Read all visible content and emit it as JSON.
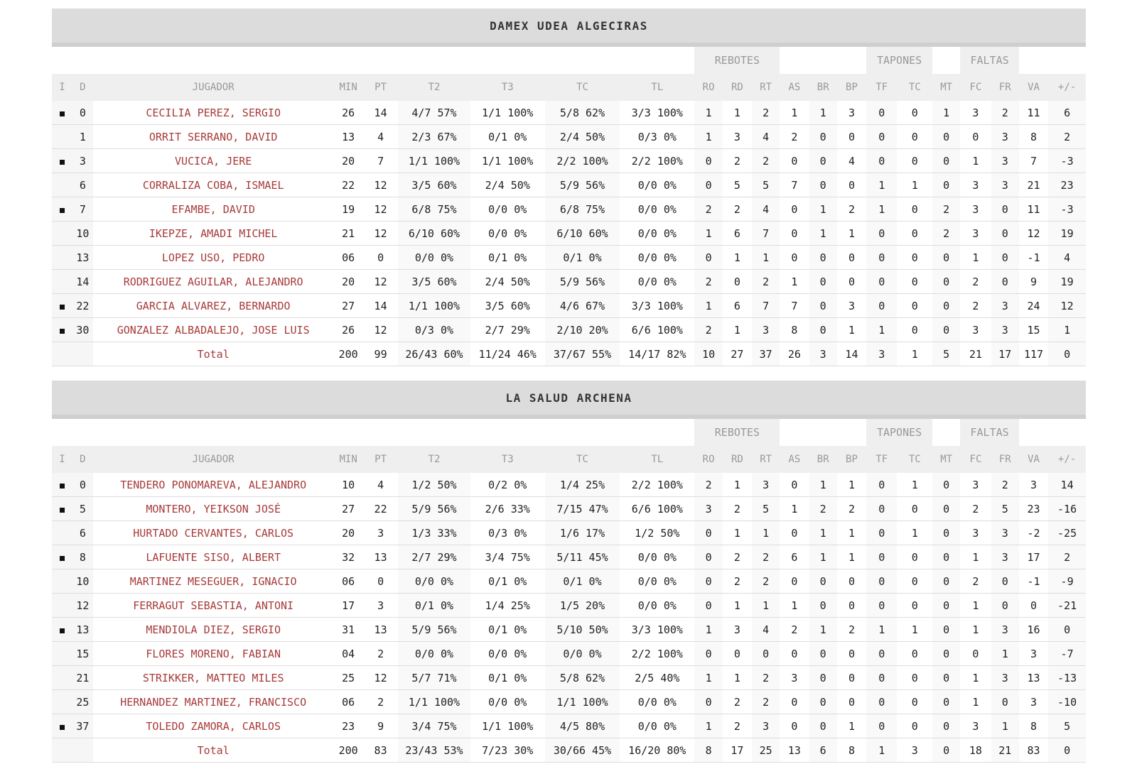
{
  "headers": {
    "groups": {
      "rebotes": "REBOTES",
      "tapones": "TAPONES",
      "faltas": "FALTAS"
    },
    "columns": [
      "I",
      "D",
      "JUGADOR",
      "MIN",
      "PT",
      "T2",
      "T3",
      "TC",
      "TL",
      "RO",
      "RD",
      "RT",
      "AS",
      "BR",
      "BP",
      "TF",
      "TC",
      "MT",
      "FC",
      "FR",
      "VA",
      "+/-"
    ]
  },
  "teams": [
    {
      "name": "DAMEX UDEA ALGECIRAS",
      "players": [
        {
          "starter": true,
          "d": "0",
          "name": "CECILIA PEREZ, SERGIO",
          "min": "26",
          "pt": "14",
          "t2": "4/7 57%",
          "t3": "1/1 100%",
          "tc": "5/8 62%",
          "tl": "3/3 100%",
          "ro": "1",
          "rd": "1",
          "rt": "2",
          "as": "1",
          "br": "1",
          "bp": "3",
          "tf": "0",
          "tc2": "0",
          "mt": "1",
          "fc": "3",
          "fr": "2",
          "va": "11",
          "pm": "6"
        },
        {
          "starter": false,
          "d": "1",
          "name": "ORRIT SERRANO, DAVID",
          "min": "13",
          "pt": "4",
          "t2": "2/3 67%",
          "t3": "0/1 0%",
          "tc": "2/4 50%",
          "tl": "0/3 0%",
          "ro": "1",
          "rd": "3",
          "rt": "4",
          "as": "2",
          "br": "0",
          "bp": "0",
          "tf": "0",
          "tc2": "0",
          "mt": "0",
          "fc": "0",
          "fr": "3",
          "va": "8",
          "pm": "2"
        },
        {
          "starter": true,
          "d": "3",
          "name": "VUCICA, JERE",
          "min": "20",
          "pt": "7",
          "t2": "1/1 100%",
          "t3": "1/1 100%",
          "tc": "2/2 100%",
          "tl": "2/2 100%",
          "ro": "0",
          "rd": "2",
          "rt": "2",
          "as": "0",
          "br": "0",
          "bp": "4",
          "tf": "0",
          "tc2": "0",
          "mt": "0",
          "fc": "1",
          "fr": "3",
          "va": "7",
          "pm": "-3"
        },
        {
          "starter": false,
          "d": "6",
          "name": "CORRALIZA COBA, ISMAEL",
          "min": "22",
          "pt": "12",
          "t2": "3/5 60%",
          "t3": "2/4 50%",
          "tc": "5/9 56%",
          "tl": "0/0 0%",
          "ro": "0",
          "rd": "5",
          "rt": "5",
          "as": "7",
          "br": "0",
          "bp": "0",
          "tf": "1",
          "tc2": "1",
          "mt": "0",
          "fc": "3",
          "fr": "3",
          "va": "21",
          "pm": "23"
        },
        {
          "starter": true,
          "d": "7",
          "name": "EFAMBE, DAVID",
          "min": "19",
          "pt": "12",
          "t2": "6/8 75%",
          "t3": "0/0 0%",
          "tc": "6/8 75%",
          "tl": "0/0 0%",
          "ro": "2",
          "rd": "2",
          "rt": "4",
          "as": "0",
          "br": "1",
          "bp": "2",
          "tf": "1",
          "tc2": "0",
          "mt": "2",
          "fc": "3",
          "fr": "0",
          "va": "11",
          "pm": "-3"
        },
        {
          "starter": false,
          "d": "10",
          "name": "IKEPZE, AMADI MICHEL",
          "min": "21",
          "pt": "12",
          "t2": "6/10 60%",
          "t3": "0/0 0%",
          "tc": "6/10 60%",
          "tl": "0/0 0%",
          "ro": "1",
          "rd": "6",
          "rt": "7",
          "as": "0",
          "br": "1",
          "bp": "1",
          "tf": "0",
          "tc2": "0",
          "mt": "2",
          "fc": "3",
          "fr": "0",
          "va": "12",
          "pm": "19"
        },
        {
          "starter": false,
          "d": "13",
          "name": "LOPEZ USO, PEDRO",
          "min": "06",
          "pt": "0",
          "t2": "0/0 0%",
          "t3": "0/1 0%",
          "tc": "0/1 0%",
          "tl": "0/0 0%",
          "ro": "0",
          "rd": "1",
          "rt": "1",
          "as": "0",
          "br": "0",
          "bp": "0",
          "tf": "0",
          "tc2": "0",
          "mt": "0",
          "fc": "1",
          "fr": "0",
          "va": "-1",
          "pm": "4"
        },
        {
          "starter": false,
          "d": "14",
          "name": "RODRIGUEZ AGUILAR, ALEJANDRO",
          "min": "20",
          "pt": "12",
          "t2": "3/5 60%",
          "t3": "2/4 50%",
          "tc": "5/9 56%",
          "tl": "0/0 0%",
          "ro": "2",
          "rd": "0",
          "rt": "2",
          "as": "1",
          "br": "0",
          "bp": "0",
          "tf": "0",
          "tc2": "0",
          "mt": "0",
          "fc": "2",
          "fr": "0",
          "va": "9",
          "pm": "19"
        },
        {
          "starter": true,
          "d": "22",
          "name": "GARCIA ALVAREZ, BERNARDO",
          "min": "27",
          "pt": "14",
          "t2": "1/1 100%",
          "t3": "3/5 60%",
          "tc": "4/6 67%",
          "tl": "3/3 100%",
          "ro": "1",
          "rd": "6",
          "rt": "7",
          "as": "7",
          "br": "0",
          "bp": "3",
          "tf": "0",
          "tc2": "0",
          "mt": "0",
          "fc": "2",
          "fr": "3",
          "va": "24",
          "pm": "12"
        },
        {
          "starter": true,
          "d": "30",
          "name": "GONZALEZ ALBADALEJO, JOSE LUIS",
          "min": "26",
          "pt": "12",
          "t2": "0/3 0%",
          "t3": "2/7 29%",
          "tc": "2/10 20%",
          "tl": "6/6 100%",
          "ro": "2",
          "rd": "1",
          "rt": "3",
          "as": "8",
          "br": "0",
          "bp": "1",
          "tf": "1",
          "tc2": "0",
          "mt": "0",
          "fc": "3",
          "fr": "3",
          "va": "15",
          "pm": "1"
        }
      ],
      "total": {
        "label": "Total",
        "min": "200",
        "pt": "99",
        "t2": "26/43 60%",
        "t3": "11/24 46%",
        "tc": "37/67 55%",
        "tl": "14/17 82%",
        "ro": "10",
        "rd": "27",
        "rt": "37",
        "as": "26",
        "br": "3",
        "bp": "14",
        "tf": "3",
        "tc2": "1",
        "mt": "5",
        "fc": "21",
        "fr": "17",
        "va": "117",
        "pm": "0"
      }
    },
    {
      "name": "LA SALUD ARCHENA",
      "players": [
        {
          "starter": true,
          "d": "0",
          "name": "TENDERO PONOMAREVA, ALEJANDRO",
          "min": "10",
          "pt": "4",
          "t2": "1/2 50%",
          "t3": "0/2 0%",
          "tc": "1/4 25%",
          "tl": "2/2 100%",
          "ro": "2",
          "rd": "1",
          "rt": "3",
          "as": "0",
          "br": "1",
          "bp": "1",
          "tf": "0",
          "tc2": "1",
          "mt": "0",
          "fc": "3",
          "fr": "2",
          "va": "3",
          "pm": "14"
        },
        {
          "starter": true,
          "d": "5",
          "name": "MONTERO, YEIKSON JOSÉ",
          "min": "27",
          "pt": "22",
          "t2": "5/9 56%",
          "t3": "2/6 33%",
          "tc": "7/15 47%",
          "tl": "6/6 100%",
          "ro": "3",
          "rd": "2",
          "rt": "5",
          "as": "1",
          "br": "2",
          "bp": "2",
          "tf": "0",
          "tc2": "0",
          "mt": "0",
          "fc": "2",
          "fr": "5",
          "va": "23",
          "pm": "-16"
        },
        {
          "starter": false,
          "d": "6",
          "name": "HURTADO CERVANTES, CARLOS",
          "min": "20",
          "pt": "3",
          "t2": "1/3 33%",
          "t3": "0/3 0%",
          "tc": "1/6 17%",
          "tl": "1/2 50%",
          "ro": "0",
          "rd": "1",
          "rt": "1",
          "as": "0",
          "br": "1",
          "bp": "1",
          "tf": "0",
          "tc2": "1",
          "mt": "0",
          "fc": "3",
          "fr": "3",
          "va": "-2",
          "pm": "-25"
        },
        {
          "starter": true,
          "d": "8",
          "name": "LAFUENTE SISO, ALBERT",
          "min": "32",
          "pt": "13",
          "t2": "2/7 29%",
          "t3": "3/4 75%",
          "tc": "5/11 45%",
          "tl": "0/0 0%",
          "ro": "0",
          "rd": "2",
          "rt": "2",
          "as": "6",
          "br": "1",
          "bp": "1",
          "tf": "0",
          "tc2": "0",
          "mt": "0",
          "fc": "1",
          "fr": "3",
          "va": "17",
          "pm": "2"
        },
        {
          "starter": false,
          "d": "10",
          "name": "MARTINEZ MESEGUER, IGNACIO",
          "min": "06",
          "pt": "0",
          "t2": "0/0 0%",
          "t3": "0/1 0%",
          "tc": "0/1 0%",
          "tl": "0/0 0%",
          "ro": "0",
          "rd": "2",
          "rt": "2",
          "as": "0",
          "br": "0",
          "bp": "0",
          "tf": "0",
          "tc2": "0",
          "mt": "0",
          "fc": "2",
          "fr": "0",
          "va": "-1",
          "pm": "-9"
        },
        {
          "starter": false,
          "d": "12",
          "name": "FERRAGUT SEBASTIA, ANTONI",
          "min": "17",
          "pt": "3",
          "t2": "0/1 0%",
          "t3": "1/4 25%",
          "tc": "1/5 20%",
          "tl": "0/0 0%",
          "ro": "0",
          "rd": "1",
          "rt": "1",
          "as": "1",
          "br": "0",
          "bp": "0",
          "tf": "0",
          "tc2": "0",
          "mt": "0",
          "fc": "1",
          "fr": "0",
          "va": "0",
          "pm": "-21"
        },
        {
          "starter": true,
          "d": "13",
          "name": "MENDIOLA DIEZ, SERGIO",
          "min": "31",
          "pt": "13",
          "t2": "5/9 56%",
          "t3": "0/1 0%",
          "tc": "5/10 50%",
          "tl": "3/3 100%",
          "ro": "1",
          "rd": "3",
          "rt": "4",
          "as": "2",
          "br": "1",
          "bp": "2",
          "tf": "1",
          "tc2": "1",
          "mt": "0",
          "fc": "1",
          "fr": "3",
          "va": "16",
          "pm": "0"
        },
        {
          "starter": false,
          "d": "15",
          "name": "FLORES MORENO, FABIAN",
          "min": "04",
          "pt": "2",
          "t2": "0/0 0%",
          "t3": "0/0 0%",
          "tc": "0/0 0%",
          "tl": "2/2 100%",
          "ro": "0",
          "rd": "0",
          "rt": "0",
          "as": "0",
          "br": "0",
          "bp": "0",
          "tf": "0",
          "tc2": "0",
          "mt": "0",
          "fc": "0",
          "fr": "1",
          "va": "3",
          "pm": "-7"
        },
        {
          "starter": false,
          "d": "21",
          "name": "STRIKKER, MATTEO MILES",
          "min": "25",
          "pt": "12",
          "t2": "5/7 71%",
          "t3": "0/1 0%",
          "tc": "5/8 62%",
          "tl": "2/5 40%",
          "ro": "1",
          "rd": "1",
          "rt": "2",
          "as": "3",
          "br": "0",
          "bp": "0",
          "tf": "0",
          "tc2": "0",
          "mt": "0",
          "fc": "1",
          "fr": "3",
          "va": "13",
          "pm": "-13"
        },
        {
          "starter": false,
          "d": "25",
          "name": "HERNANDEZ MARTINEZ, FRANCISCO",
          "min": "06",
          "pt": "2",
          "t2": "1/1 100%",
          "t3": "0/0 0%",
          "tc": "1/1 100%",
          "tl": "0/0 0%",
          "ro": "0",
          "rd": "2",
          "rt": "2",
          "as": "0",
          "br": "0",
          "bp": "0",
          "tf": "0",
          "tc2": "0",
          "mt": "0",
          "fc": "1",
          "fr": "0",
          "va": "3",
          "pm": "-10"
        },
        {
          "starter": true,
          "d": "37",
          "name": "TOLEDO ZAMORA, CARLOS",
          "min": "23",
          "pt": "9",
          "t2": "3/4 75%",
          "t3": "1/1 100%",
          "tc": "4/5 80%",
          "tl": "0/0 0%",
          "ro": "1",
          "rd": "2",
          "rt": "3",
          "as": "0",
          "br": "0",
          "bp": "1",
          "tf": "0",
          "tc2": "0",
          "mt": "0",
          "fc": "3",
          "fr": "1",
          "va": "8",
          "pm": "5"
        }
      ],
      "total": {
        "label": "Total",
        "min": "200",
        "pt": "83",
        "t2": "23/43 53%",
        "t3": "7/23 30%",
        "tc": "30/66 45%",
        "tl": "16/20 80%",
        "ro": "8",
        "rd": "17",
        "rt": "25",
        "as": "13",
        "br": "6",
        "bp": "8",
        "tf": "1",
        "tc2": "3",
        "mt": "0",
        "fc": "18",
        "fr": "21",
        "va": "83",
        "pm": "0"
      }
    }
  ]
}
